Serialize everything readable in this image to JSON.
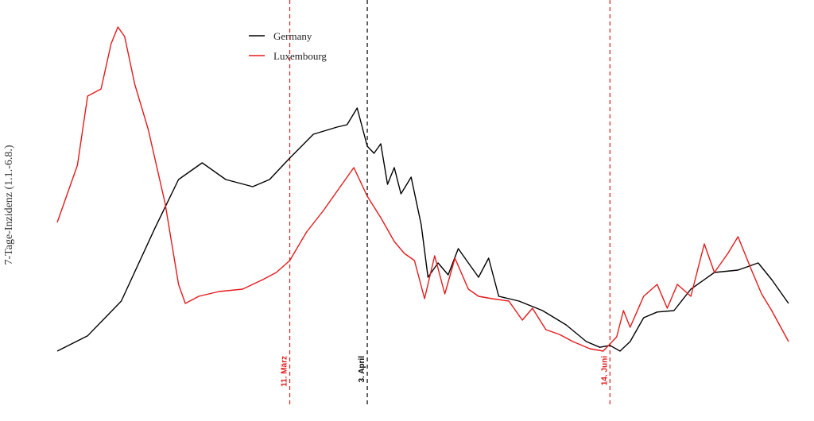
{
  "chart_data": {
    "type": "line",
    "title": "",
    "xlabel": "",
    "ylabel": "7-Tage-Inzidenz (1.1.-6.8.)",
    "x_range": [
      "2021-01-01",
      "2021-08-06"
    ],
    "grid": false,
    "legend_position": "top-center",
    "series": [
      {
        "name": "Germany",
        "color": "#000000",
        "points": [
          [
            "2021-01-01",
            10
          ],
          [
            "2021-01-10",
            42
          ],
          [
            "2021-01-20",
            115
          ],
          [
            "2021-01-30",
            268
          ],
          [
            "2021-02-06",
            370
          ],
          [
            "2021-02-13",
            405
          ],
          [
            "2021-02-20",
            370
          ],
          [
            "2021-02-28",
            355
          ],
          [
            "2021-03-05",
            370
          ],
          [
            "2021-03-11",
            415
          ],
          [
            "2021-03-18",
            465
          ],
          [
            "2021-03-25",
            480
          ],
          [
            "2021-03-28",
            485
          ],
          [
            "2021-03-31",
            520
          ],
          [
            "2021-04-03",
            440
          ],
          [
            "2021-04-05",
            425
          ],
          [
            "2021-04-07",
            445
          ],
          [
            "2021-04-09",
            360
          ],
          [
            "2021-04-11",
            395
          ],
          [
            "2021-04-13",
            340
          ],
          [
            "2021-04-16",
            375
          ],
          [
            "2021-04-19",
            275
          ],
          [
            "2021-04-21",
            165
          ],
          [
            "2021-04-24",
            195
          ],
          [
            "2021-04-27",
            170
          ],
          [
            "2021-04-30",
            225
          ],
          [
            "2021-05-03",
            195
          ],
          [
            "2021-05-06",
            165
          ],
          [
            "2021-05-09",
            205
          ],
          [
            "2021-05-12",
            125
          ],
          [
            "2021-05-18",
            115
          ],
          [
            "2021-05-25",
            95
          ],
          [
            "2021-06-01",
            65
          ],
          [
            "2021-06-07",
            30
          ],
          [
            "2021-06-11",
            18
          ],
          [
            "2021-06-14",
            22
          ],
          [
            "2021-06-17",
            10
          ],
          [
            "2021-06-20",
            30
          ],
          [
            "2021-06-24",
            80
          ],
          [
            "2021-06-28",
            92
          ],
          [
            "2021-07-03",
            95
          ],
          [
            "2021-07-08",
            140
          ],
          [
            "2021-07-15",
            175
          ],
          [
            "2021-07-22",
            180
          ],
          [
            "2021-07-28",
            195
          ],
          [
            "2021-08-01",
            160
          ],
          [
            "2021-08-06",
            110
          ]
        ]
      },
      {
        "name": "Luxembourg",
        "color": "#e41a1c",
        "points": [
          [
            "2021-01-01",
            280
          ],
          [
            "2021-01-04",
            340
          ],
          [
            "2021-01-07",
            400
          ],
          [
            "2021-01-10",
            545
          ],
          [
            "2021-01-14",
            560
          ],
          [
            "2021-01-17",
            655
          ],
          [
            "2021-01-19",
            690
          ],
          [
            "2021-01-21",
            670
          ],
          [
            "2021-01-24",
            570
          ],
          [
            "2021-01-28",
            475
          ],
          [
            "2021-02-02",
            320
          ],
          [
            "2021-02-06",
            150
          ],
          [
            "2021-02-08",
            110
          ],
          [
            "2021-02-12",
            125
          ],
          [
            "2021-02-18",
            135
          ],
          [
            "2021-02-25",
            140
          ],
          [
            "2021-03-03",
            160
          ],
          [
            "2021-03-07",
            175
          ],
          [
            "2021-03-11",
            200
          ],
          [
            "2021-03-16",
            260
          ],
          [
            "2021-03-21",
            305
          ],
          [
            "2021-03-26",
            355
          ],
          [
            "2021-03-30",
            395
          ],
          [
            "2021-04-03",
            335
          ],
          [
            "2021-04-07",
            290
          ],
          [
            "2021-04-11",
            240
          ],
          [
            "2021-04-14",
            215
          ],
          [
            "2021-04-17",
            200
          ],
          [
            "2021-04-20",
            120
          ],
          [
            "2021-04-23",
            210
          ],
          [
            "2021-04-26",
            130
          ],
          [
            "2021-04-29",
            205
          ],
          [
            "2021-05-03",
            140
          ],
          [
            "2021-05-06",
            125
          ],
          [
            "2021-05-10",
            120
          ],
          [
            "2021-05-15",
            115
          ],
          [
            "2021-05-19",
            75
          ],
          [
            "2021-05-22",
            100
          ],
          [
            "2021-05-26",
            55
          ],
          [
            "2021-05-30",
            45
          ],
          [
            "2021-06-03",
            30
          ],
          [
            "2021-06-08",
            15
          ],
          [
            "2021-06-12",
            10
          ],
          [
            "2021-06-16",
            40
          ],
          [
            "2021-06-18",
            95
          ],
          [
            "2021-06-20",
            60
          ],
          [
            "2021-06-24",
            125
          ],
          [
            "2021-06-28",
            150
          ],
          [
            "2021-07-01",
            100
          ],
          [
            "2021-07-04",
            150
          ],
          [
            "2021-07-08",
            125
          ],
          [
            "2021-07-12",
            235
          ],
          [
            "2021-07-15",
            175
          ],
          [
            "2021-07-19",
            215
          ],
          [
            "2021-07-22",
            250
          ],
          [
            "2021-07-26",
            180
          ],
          [
            "2021-07-29",
            130
          ],
          [
            "2021-08-01",
            95
          ],
          [
            "2021-08-06",
            30
          ]
        ]
      }
    ],
    "reference_lines": [
      {
        "date": "2021-03-11",
        "label": "11. März",
        "color": "#e41a1c"
      },
      {
        "date": "2021-04-03",
        "label": "3. April",
        "color": "#000000"
      },
      {
        "date": "2021-06-14",
        "label": "14. Juni",
        "color": "#e41a1c"
      }
    ]
  }
}
